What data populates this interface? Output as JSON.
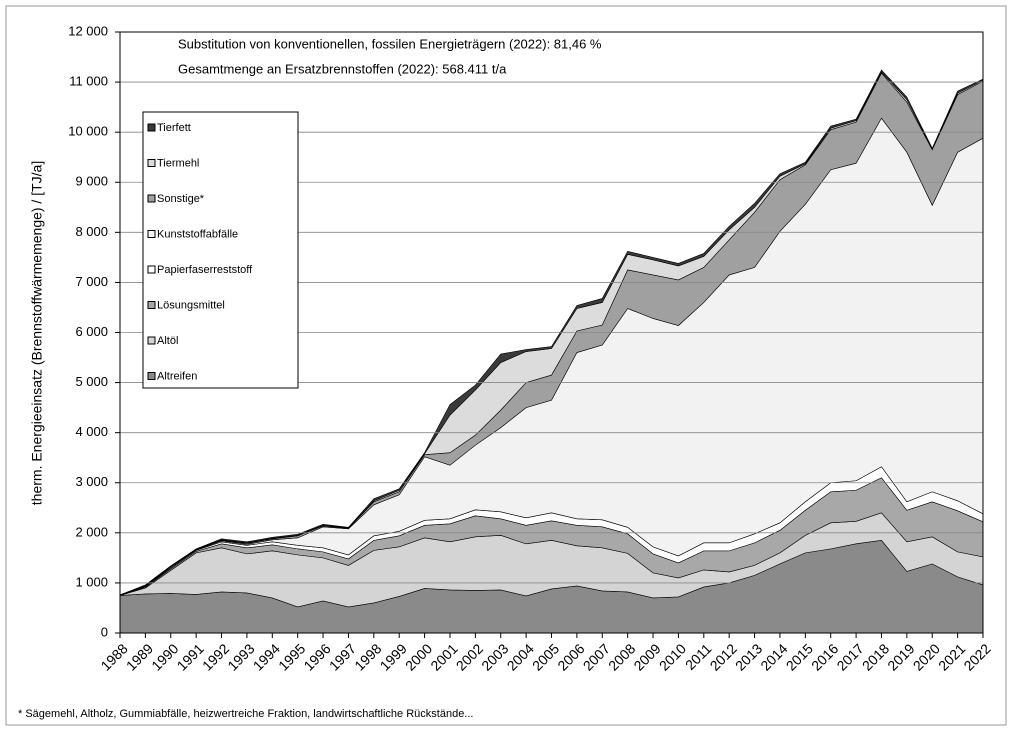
{
  "chart_data": {
    "type": "stacked_area",
    "annotations": [
      "Substitution von konventionellen, fossilen Energieträgern (2022): 81,46 %",
      "Gesamtmenge an Ersatzbrennstoffen (2022): 568.411 t/a"
    ],
    "y_label": "therm. Energieeinsatz (Brennstoffwärmemenge) / [TJ/a]",
    "footnote": "* Sägemehl, Altholz, Gummiabfälle, heizwertreiche Fraktion, landwirtschaftliche Rückstände...",
    "categories": [
      "1988",
      "1989",
      "1990",
      "1991",
      "1992",
      "1993",
      "1994",
      "1995",
      "1996",
      "1997",
      "1998",
      "1999",
      "2000",
      "2001",
      "2002",
      "2003",
      "2004",
      "2005",
      "2006",
      "2007",
      "2008",
      "2009",
      "2010",
      "2011",
      "2012",
      "2013",
      "2014",
      "2015",
      "2016",
      "2017",
      "2018",
      "2019",
      "2020",
      "2021",
      "2022"
    ],
    "series": [
      {
        "name": "Altreifen",
        "color": "#8a8a8a",
        "values": [
          750,
          780,
          790,
          770,
          820,
          800,
          700,
          520,
          640,
          520,
          600,
          730,
          890,
          860,
          850,
          860,
          740,
          880,
          940,
          840,
          820,
          700,
          720,
          920,
          1000,
          1150,
          1380,
          1600,
          1680,
          1780,
          1850,
          1230,
          1380,
          1120,
          960
        ]
      },
      {
        "name": "Altöl",
        "color": "#d4d4d4",
        "values": [
          0,
          120,
          460,
          830,
          880,
          780,
          940,
          1040,
          860,
          830,
          1050,
          990,
          1010,
          960,
          1070,
          1090,
          1040,
          970,
          800,
          860,
          770,
          500,
          380,
          340,
          220,
          200,
          220,
          350,
          520,
          450,
          550,
          590,
          540,
          500,
          560
        ]
      },
      {
        "name": "Lösungsmittel",
        "color": "#a8a8a8",
        "values": [
          0,
          20,
          30,
          30,
          80,
          120,
          120,
          120,
          120,
          130,
          200,
          220,
          250,
          360,
          420,
          330,
          370,
          390,
          410,
          420,
          390,
          380,
          300,
          380,
          420,
          450,
          450,
          500,
          620,
          620,
          700,
          630,
          700,
          820,
          700
        ]
      },
      {
        "name": "Papierfaserreststoff",
        "color": "#ffffff",
        "values": [
          10,
          10,
          20,
          20,
          40,
          50,
          60,
          70,
          80,
          80,
          90,
          90,
          100,
          100,
          120,
          140,
          150,
          160,
          130,
          140,
          130,
          140,
          140,
          160,
          160,
          180,
          150,
          170,
          180,
          190,
          220,
          170,
          200,
          200,
          160
        ]
      },
      {
        "name": "Kunststoffabfälle",
        "color": "#f2f2f2",
        "values": [
          0,
          10,
          20,
          10,
          20,
          20,
          40,
          150,
          420,
          520,
          620,
          730,
          1270,
          1070,
          1290,
          1680,
          2200,
          2250,
          3320,
          3490,
          4370,
          4560,
          4600,
          4800,
          5350,
          5320,
          5820,
          5940,
          6250,
          6340,
          6960,
          6980,
          5720,
          6960,
          7500
        ]
      },
      {
        "name": "Sonstige*",
        "color": "#a0a0a0",
        "values": [
          0,
          10,
          10,
          10,
          10,
          20,
          20,
          40,
          20,
          10,
          60,
          60,
          40,
          250,
          200,
          350,
          500,
          500,
          430,
          400,
          770,
          870,
          910,
          700,
          700,
          1100,
          1030,
          790,
          800,
          820,
          900,
          1000,
          1110,
          1150,
          1140
        ]
      },
      {
        "name": "Tiermehl",
        "color": "#dcdcdc",
        "values": [
          0,
          0,
          0,
          0,
          10,
          10,
          10,
          10,
          10,
          10,
          20,
          30,
          20,
          750,
          900,
          950,
          620,
          530,
          450,
          450,
          310,
          300,
          280,
          220,
          200,
          100,
          70,
          20,
          30,
          30,
          20,
          50,
          10,
          30,
          20
        ]
      },
      {
        "name": "Tierfett",
        "color": "#3a3a3a",
        "values": [
          0,
          10,
          10,
          10,
          20,
          20,
          20,
          20,
          20,
          10,
          40,
          30,
          20,
          210,
          100,
          170,
          40,
          40,
          60,
          80,
          60,
          50,
          50,
          60,
          70,
          80,
          50,
          30,
          40,
          30,
          40,
          50,
          20,
          40,
          20
        ]
      }
    ],
    "ylim": [
      0,
      12000
    ],
    "yticks": [
      0,
      {
        "value": 1000,
        "label": "1 000"
      },
      {
        "value": 2000,
        "label": "2 000"
      },
      {
        "value": 3000,
        "label": "3 000"
      },
      {
        "value": 4000,
        "label": "4 000"
      },
      {
        "value": 5000,
        "label": "5 000"
      },
      {
        "value": 6000,
        "label": "6 000"
      },
      {
        "value": 7000,
        "label": "7 000"
      },
      {
        "value": 8000,
        "label": "8 000"
      },
      {
        "value": 9000,
        "label": "9 000"
      },
      {
        "value": 10000,
        "label": "10 000"
      },
      {
        "value": 11000,
        "label": "11 000"
      },
      {
        "value": 12000,
        "label": "12 000"
      }
    ],
    "grid": true,
    "legend": "upper-left"
  }
}
